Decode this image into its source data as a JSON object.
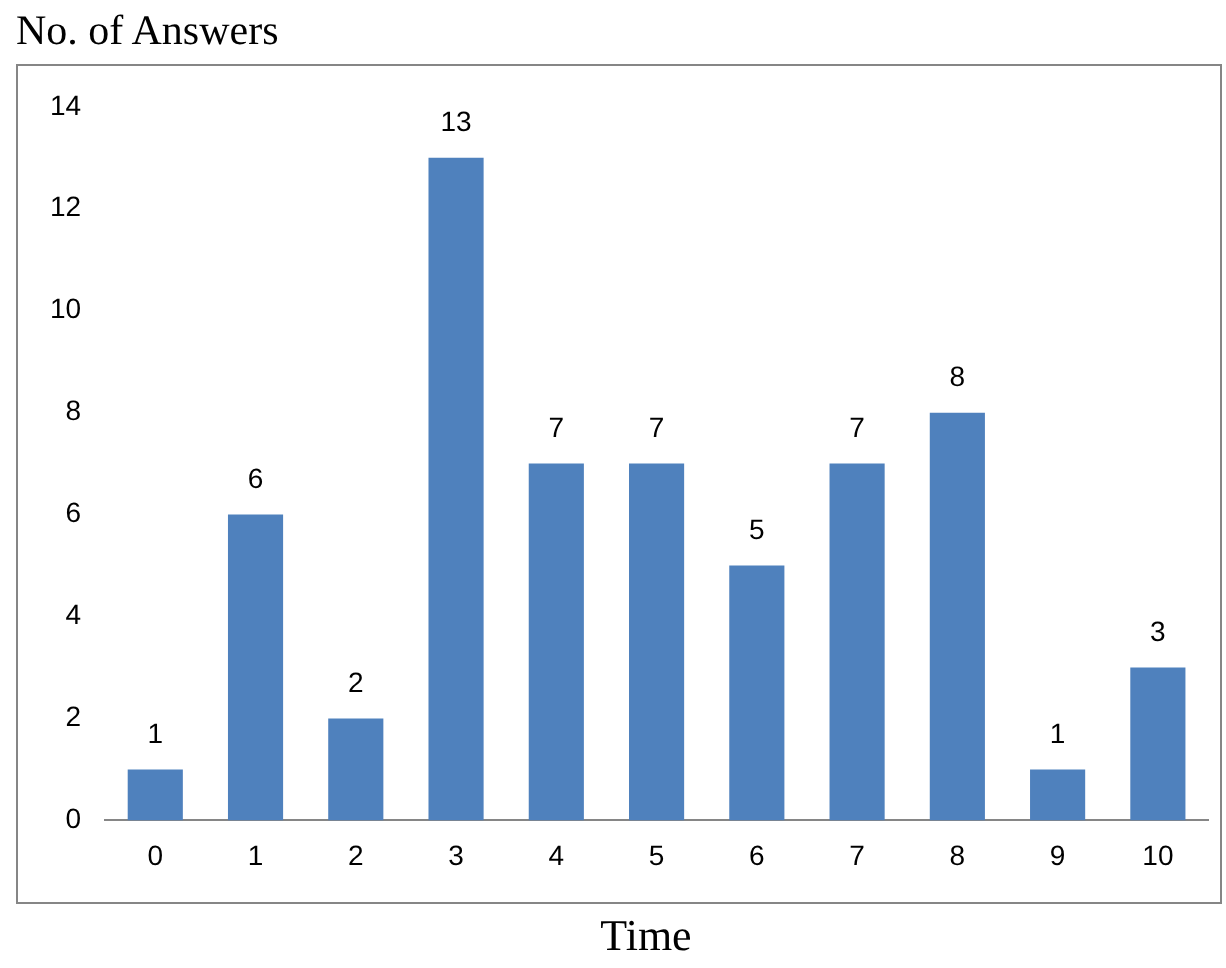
{
  "chart_data": {
    "type": "bar",
    "title": "No. of Answers",
    "xlabel": "Time",
    "categories": [
      "0",
      "1",
      "2",
      "3",
      "4",
      "5",
      "6",
      "7",
      "8",
      "9",
      "10"
    ],
    "values": [
      1,
      6,
      2,
      13,
      7,
      7,
      5,
      7,
      8,
      1,
      3
    ],
    "color": "#4f81bd",
    "ylim": [
      0,
      14
    ],
    "yticks": [
      0,
      2,
      4,
      6,
      8,
      10,
      12,
      14
    ],
    "grid": false,
    "legend": false,
    "data_labels": true
  }
}
